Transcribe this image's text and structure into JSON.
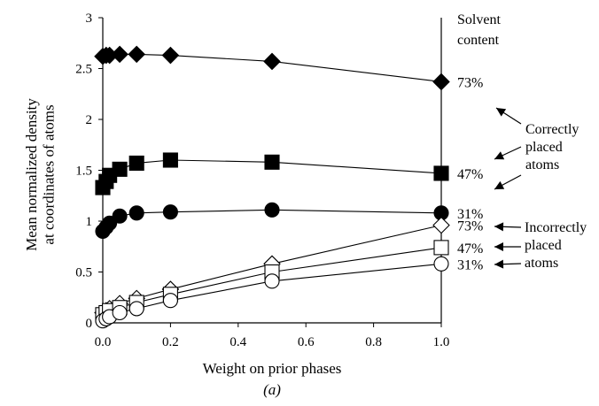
{
  "chart_data": {
    "type": "line",
    "xlabel": "Weight on prior phases",
    "ylabel": "Mean normalized density at coordinates of atoms",
    "caption": "(a)",
    "xlim": [
      0.0,
      1.0
    ],
    "ylim": [
      0,
      3
    ],
    "x_ticks": [
      "0.0",
      "0.2",
      "0.4",
      "0.6",
      "0.8",
      "1.0"
    ],
    "y_ticks": [
      "0",
      "0.5",
      "1",
      "1.5",
      "2",
      "2.5",
      "3"
    ],
    "legend_title": [
      "Solvent",
      "content"
    ],
    "group_labels": {
      "correct": [
        "Correctly",
        "placed",
        "atoms"
      ],
      "incorrect": [
        "Incorrectly",
        "placed",
        "atoms"
      ]
    },
    "series": [
      {
        "name": "73%",
        "group": "correct",
        "marker": "diamond",
        "filled": true,
        "x": [
          0.0,
          0.01,
          0.02,
          0.05,
          0.1,
          0.2,
          0.5,
          1.0
        ],
        "y": [
          2.62,
          2.63,
          2.63,
          2.64,
          2.64,
          2.63,
          2.57,
          2.37
        ]
      },
      {
        "name": "47%",
        "group": "correct",
        "marker": "square",
        "filled": true,
        "x": [
          0.0,
          0.01,
          0.02,
          0.05,
          0.1,
          0.2,
          0.5,
          1.0
        ],
        "y": [
          1.33,
          1.39,
          1.45,
          1.51,
          1.57,
          1.6,
          1.58,
          1.47
        ]
      },
      {
        "name": "31%",
        "group": "correct",
        "marker": "circle",
        "filled": true,
        "x": [
          0.0,
          0.01,
          0.02,
          0.05,
          0.1,
          0.2,
          0.5,
          1.0
        ],
        "y": [
          0.9,
          0.94,
          0.98,
          1.05,
          1.08,
          1.09,
          1.11,
          1.08
        ]
      },
      {
        "name": "73%",
        "group": "incorrect",
        "marker": "diamond",
        "filled": false,
        "x": [
          0.0,
          0.01,
          0.02,
          0.05,
          0.1,
          0.2,
          0.5,
          1.0
        ],
        "y": [
          0.1,
          0.12,
          0.14,
          0.19,
          0.24,
          0.33,
          0.58,
          0.96
        ]
      },
      {
        "name": "47%",
        "group": "incorrect",
        "marker": "square",
        "filled": false,
        "x": [
          0.0,
          0.01,
          0.02,
          0.05,
          0.1,
          0.2,
          0.5,
          1.0
        ],
        "y": [
          0.08,
          0.1,
          0.12,
          0.15,
          0.2,
          0.28,
          0.5,
          0.74
        ]
      },
      {
        "name": "31%",
        "group": "incorrect",
        "marker": "circle",
        "filled": false,
        "x": [
          0.0,
          0.01,
          0.02,
          0.05,
          0.1,
          0.2,
          0.5,
          1.0
        ],
        "y": [
          0.02,
          0.04,
          0.06,
          0.1,
          0.14,
          0.22,
          0.41,
          0.58
        ]
      }
    ]
  }
}
